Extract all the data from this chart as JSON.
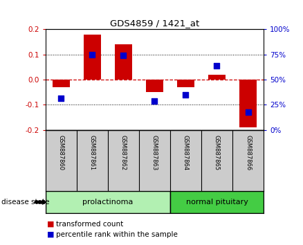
{
  "title": "GDS4859 / 1421_at",
  "samples": [
    "GSM887860",
    "GSM887861",
    "GSM887862",
    "GSM887863",
    "GSM887864",
    "GSM887865",
    "GSM887866"
  ],
  "red_bars": [
    -0.03,
    0.18,
    0.14,
    -0.05,
    -0.03,
    0.02,
    -0.19
  ],
  "blue_dots": [
    -0.075,
    0.1,
    0.097,
    -0.085,
    -0.06,
    0.055,
    -0.13
  ],
  "ylim": [
    -0.2,
    0.2
  ],
  "yticks_left": [
    -0.2,
    -0.1,
    0.0,
    0.1,
    0.2
  ],
  "yticks_right": [
    0,
    25,
    50,
    75,
    100
  ],
  "yticks_right_vals": [
    -0.2,
    -0.1,
    0.0,
    0.1,
    0.2
  ],
  "groups": [
    {
      "label": "prolactinoma",
      "samples": [
        0,
        1,
        2,
        3
      ],
      "color": "#b2f0b2"
    },
    {
      "label": "normal pituitary",
      "samples": [
        4,
        5,
        6
      ],
      "color": "#44cc44"
    }
  ],
  "group_label": "disease state",
  "bar_color": "#cc0000",
  "dot_color": "#0000cc",
  "axis_label_color_left": "#cc0000",
  "axis_label_color_right": "#0000cc",
  "bg_color": "#ffffff",
  "sample_bg_color": "#cccccc",
  "label_legend_red": "transformed count",
  "label_legend_blue": "percentile rank within the sample"
}
